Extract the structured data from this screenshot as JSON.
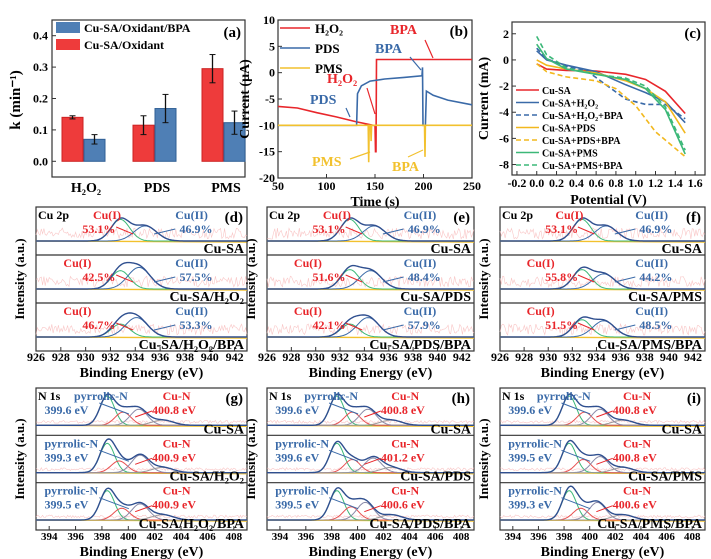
{
  "chart_data": [
    {
      "panel": "a",
      "label": "(a)",
      "type": "bar",
      "categories": [
        "H₂O₂",
        "PDS",
        "PMS"
      ],
      "ylabel": "k (min⁻¹)",
      "xlabel": "",
      "ylim": [
        -0.05,
        0.45
      ],
      "yticks": [
        "0.0",
        "0.1",
        "0.2",
        "0.3",
        "0.4"
      ],
      "legend_position": "top-left",
      "series": [
        {
          "name": "Cu-SA/Oxidant",
          "color": "#ee3b3b",
          "values": [
            0.14,
            0.115,
            0.295
          ],
          "errors": [
            0.005,
            0.03,
            0.045
          ]
        },
        {
          "name": "Cu-SA/Oxidant/BPA",
          "color": "#4f7fb5",
          "values": [
            0.07,
            0.168,
            0.123
          ],
          "errors": [
            0.015,
            0.045,
            0.037
          ]
        }
      ]
    },
    {
      "panel": "b",
      "label": "(b)",
      "type": "line",
      "xlabel": "Time (s)",
      "ylabel": "Current (μA)",
      "xlim": [
        50,
        250
      ],
      "ylim": [
        -20,
        10
      ],
      "xticks": [
        "50",
        "100",
        "150",
        "200",
        "250"
      ],
      "yticks": [
        "-20",
        "-15",
        "-10",
        "-5",
        "0",
        "5",
        "10"
      ],
      "legend_position": "top-left",
      "series": [
        {
          "name": "H₂O₂",
          "color": "#e8262b",
          "points": [
            [
              50,
              -6.4
            ],
            [
              70,
              -6.7
            ],
            [
              90,
              -7.6
            ],
            [
              110,
              -8.4
            ],
            [
              130,
              -9.3
            ],
            [
              148,
              -10
            ],
            [
              150,
              -10
            ],
            [
              150.5,
              -15
            ],
            [
              151,
              -15
            ],
            [
              151.5,
              2.5
            ],
            [
              250,
              2.5
            ]
          ]
        },
        {
          "name": "PDS",
          "color": "#3a6aa8",
          "points": [
            [
              50,
              -10
            ],
            [
              131,
              -10
            ],
            [
              132,
              -4
            ],
            [
              136,
              -2.5
            ],
            [
              145,
              -1.6
            ],
            [
              160,
              -1.2
            ],
            [
              180,
              -0.9
            ],
            [
              198.5,
              -0.6
            ],
            [
              199,
              1
            ],
            [
              199.5,
              -10
            ],
            [
              202,
              -10
            ],
            [
              203,
              -3.5
            ],
            [
              210,
              -4.3
            ],
            [
              225,
              -5.2
            ],
            [
              250,
              -6.1
            ]
          ]
        },
        {
          "name": "PMS",
          "color": "#f2c12e",
          "points": [
            [
              50,
              -10
            ],
            [
              143,
              -10
            ],
            [
              143.5,
              -17
            ],
            [
              144,
              -10
            ],
            [
              145.5,
              -10
            ],
            [
              146,
              -13
            ],
            [
              146.5,
              -10
            ],
            [
              201,
              -10
            ],
            [
              201.5,
              -16
            ],
            [
              202,
              -10
            ],
            [
              250,
              -10
            ]
          ]
        }
      ],
      "annotations": [
        {
          "text": "BPA",
          "color": "#e8262b"
        },
        {
          "text": "BPA",
          "color": "#3a6aa8"
        },
        {
          "text": "H₂O₂",
          "color": "#e8262b"
        },
        {
          "text": "PDS",
          "color": "#3a6aa8"
        },
        {
          "text": "PMS",
          "color": "#f2c12e"
        },
        {
          "text": "BPA",
          "color": "#f2c12e"
        }
      ]
    },
    {
      "panel": "c",
      "label": "(c)",
      "type": "line",
      "xlabel": "Potential (V)",
      "ylabel": "Current (mA)",
      "xlim": [
        -0.25,
        1.7
      ],
      "ylim": [
        -8.8,
        2.9
      ],
      "xticks": [
        "-0.2",
        "0.0",
        "0.2",
        "0.4",
        "0.6",
        "0.8",
        "1.0",
        "1.2",
        "1.4",
        "1.6"
      ],
      "yticks": [
        "-8",
        "-6",
        "-4",
        "-2",
        "0",
        "2"
      ],
      "legend_position": "bottom-left",
      "series": [
        {
          "name": "Cu-SA",
          "color": "#e8262b",
          "dash": false,
          "points": [
            [
              0,
              -0.3
            ],
            [
              0.1,
              -0.7
            ],
            [
              0.3,
              -0.8
            ],
            [
              0.6,
              -0.85
            ],
            [
              0.9,
              -1.1
            ],
            [
              1.1,
              -1.5
            ],
            [
              1.3,
              -2.4
            ],
            [
              1.5,
              -4.1
            ]
          ]
        },
        {
          "name": "Cu-SA+H₂O₂",
          "color": "#3a6aa8",
          "dash": false,
          "points": [
            [
              0,
              0.7
            ],
            [
              0.1,
              0
            ],
            [
              0.3,
              -0.4
            ],
            [
              0.6,
              -0.9
            ],
            [
              0.9,
              -1.9
            ],
            [
              1.1,
              -2.5
            ],
            [
              1.3,
              -3.2
            ],
            [
              1.5,
              -4.8
            ]
          ]
        },
        {
          "name": "Cu-SA+H₂O₂+BPA",
          "color": "#3a6aa8",
          "dash": true,
          "points": [
            [
              0,
              0.9
            ],
            [
              0.1,
              0.1
            ],
            [
              0.3,
              -0.5
            ],
            [
              0.5,
              -0.8
            ],
            [
              0.7,
              -1.9
            ],
            [
              0.9,
              -3
            ],
            [
              1.1,
              -3.4
            ],
            [
              1.3,
              -3.4
            ],
            [
              1.5,
              -4.5
            ]
          ]
        },
        {
          "name": "Cu-SA+PDS",
          "color": "#f2b81e",
          "dash": false,
          "points": [
            [
              0,
              0
            ],
            [
              0.1,
              -0.4
            ],
            [
              0.3,
              -0.7
            ],
            [
              0.6,
              -1.0
            ],
            [
              0.9,
              -1.6
            ],
            [
              1.1,
              -2.2
            ],
            [
              1.3,
              -3.2
            ],
            [
              1.5,
              -5.6
            ]
          ]
        },
        {
          "name": "Cu-SA+PDS+BPA",
          "color": "#f2b81e",
          "dash": true,
          "points": [
            [
              0,
              -0.3
            ],
            [
              0.1,
              -0.9
            ],
            [
              0.3,
              -1.3
            ],
            [
              0.6,
              -1.6
            ],
            [
              0.8,
              -2.2
            ],
            [
              1.0,
              -3.5
            ],
            [
              1.2,
              -5.5
            ],
            [
              1.5,
              -7.4
            ]
          ]
        },
        {
          "name": "Cu-SA+PMS",
          "color": "#3cb878",
          "dash": false,
          "points": [
            [
              0,
              1.2
            ],
            [
              0.1,
              0.1
            ],
            [
              0.3,
              -0.7
            ],
            [
              0.6,
              -1.1
            ],
            [
              0.9,
              -1.5
            ],
            [
              1.1,
              -2.2
            ],
            [
              1.3,
              -3.8
            ],
            [
              1.5,
              -7.2
            ]
          ]
        },
        {
          "name": "Cu-SA+PMS+BPA",
          "color": "#3cb878",
          "dash": true,
          "points": [
            [
              0,
              1.8
            ],
            [
              0.1,
              0.4
            ],
            [
              0.3,
              -0.6
            ],
            [
              0.6,
              -1.1
            ],
            [
              0.9,
              -1.4
            ],
            [
              1.1,
              -2.0
            ],
            [
              1.3,
              -3.6
            ],
            [
              1.5,
              -6.9
            ]
          ]
        }
      ]
    },
    {
      "panel": "d",
      "label": "(d)",
      "type": "line",
      "element": "Cu 2p",
      "xlabel": "Binding Energy (eV)",
      "ylabel": "Intensity (a.u.)",
      "xlim": [
        926,
        943
      ],
      "xticks": [
        "926",
        "928",
        "930",
        "932",
        "934",
        "936",
        "938",
        "940",
        "942"
      ],
      "subpanels": [
        {
          "sample": "Cu-SA",
          "peaks": [
            {
              "label": "Cu(I)",
              "value": "53.1%",
              "center": 932.8,
              "height": 1.0
            },
            {
              "label": "Cu(II)",
              "value": "46.9%",
              "center": 934.8,
              "height": 0.7
            }
          ]
        },
        {
          "sample": "Cu-SA/H₂O₂",
          "peaks": [
            {
              "label": "Cu(I)",
              "value": "42.5%",
              "center": 932.8,
              "height": 0.85
            },
            {
              "label": "Cu(II)",
              "value": "57.5%",
              "center": 934.3,
              "height": 1.0
            }
          ]
        },
        {
          "sample": "Cu-SA/H₂O₂/BPA",
          "peaks": [
            {
              "label": "Cu(I)",
              "value": "46.7%",
              "center": 932.8,
              "height": 0.6
            },
            {
              "label": "Cu(II)",
              "value": "53.3%",
              "center": 934.1,
              "height": 0.9
            }
          ]
        }
      ]
    },
    {
      "panel": "e",
      "label": "(e)",
      "type": "line",
      "element": "Cu 2p",
      "xlabel": "Binding Energy (eV)",
      "ylabel": "Intensity (a.u.)",
      "xlim": [
        926,
        943
      ],
      "xticks": [
        "926",
        "928",
        "930",
        "932",
        "934",
        "936",
        "938",
        "940",
        "942"
      ],
      "subpanels": [
        {
          "sample": "Cu-SA",
          "peaks": [
            {
              "label": "Cu(I)",
              "value": "53.1%",
              "center": 932.8,
              "height": 1.0
            },
            {
              "label": "Cu(II)",
              "value": "46.9%",
              "center": 934.8,
              "height": 0.7
            }
          ]
        },
        {
          "sample": "Cu-SA/PDS",
          "peaks": [
            {
              "label": "Cu(I)",
              "value": "51.6%",
              "center": 932.8,
              "height": 0.9
            },
            {
              "label": "Cu(II)",
              "value": "48.4%",
              "center": 934.5,
              "height": 0.85
            }
          ]
        },
        {
          "sample": "Cu-SA/PDS/BPA",
          "peaks": [
            {
              "label": "Cu(I)",
              "value": "42.1%",
              "center": 932.8,
              "height": 0.6
            },
            {
              "label": "Cu(II)",
              "value": "57.9%",
              "center": 934.3,
              "height": 0.9
            }
          ]
        }
      ]
    },
    {
      "panel": "f",
      "label": "(f)",
      "type": "line",
      "element": "Cu 2p",
      "xlabel": "Binding Energy (eV)",
      "ylabel": "Intensity (a.u.)",
      "xlim": [
        926,
        943
      ],
      "xticks": [
        "926",
        "928",
        "930",
        "932",
        "934",
        "936",
        "938",
        "940",
        "942"
      ],
      "subpanels": [
        {
          "sample": "Cu-SA",
          "peaks": [
            {
              "label": "Cu(I)",
              "value": "53.1%",
              "center": 932.8,
              "height": 1.0
            },
            {
              "label": "Cu(II)",
              "value": "46.9%",
              "center": 934.8,
              "height": 0.7
            }
          ]
        },
        {
          "sample": "Cu-SA/PMS",
          "peaks": [
            {
              "label": "Cu(I)",
              "value": "55.8%",
              "center": 932.8,
              "height": 0.9
            },
            {
              "label": "Cu(II)",
              "value": "44.2%",
              "center": 934.6,
              "height": 0.7
            }
          ]
        },
        {
          "sample": "Cu-SA/PMS/BPA",
          "peaks": [
            {
              "label": "Cu(I)",
              "value": "51.5%",
              "center": 932.8,
              "height": 0.8
            },
            {
              "label": "Cu(II)",
              "value": "48.5%",
              "center": 934.6,
              "height": 0.75
            }
          ]
        }
      ]
    },
    {
      "panel": "g",
      "label": "(g)",
      "type": "line",
      "element": "N 1s",
      "xlabel": "Binding Energy (eV)",
      "ylabel": "Intensity (a.u.)",
      "xlim": [
        393,
        409
      ],
      "xticks": [
        "394",
        "396",
        "398",
        "400",
        "402",
        "404",
        "406",
        "408"
      ],
      "subpanels": [
        {
          "sample": "Cu-SA",
          "peaks": [
            {
              "label": "pyrrolic-N",
              "value": "399.6 eV",
              "center": 399.6,
              "height": 0.45
            },
            {
              "label": "Cu-N",
              "value": "400.8 eV",
              "center": 400.8,
              "height": 0.55
            }
          ]
        },
        {
          "sample": "Cu-SA/H₂O₂",
          "peaks": [
            {
              "label": "pyrrolic-N",
              "value": "399.3 eV",
              "center": 399.3,
              "height": 0.4
            },
            {
              "label": "Cu-N",
              "value": "400.9 eV",
              "center": 400.9,
              "height": 0.6
            }
          ]
        },
        {
          "sample": "Cu-SA/H₂O₂/BPA",
          "peaks": [
            {
              "label": "pyrrolic-N",
              "value": "399.5 eV",
              "center": 399.5,
              "height": 0.4
            },
            {
              "label": "Cu-N",
              "value": "400.9 eV",
              "center": 400.9,
              "height": 0.55
            }
          ]
        }
      ]
    },
    {
      "panel": "h",
      "label": "(h)",
      "type": "line",
      "element": "N 1s",
      "xlabel": "Binding Energy (eV)",
      "ylabel": "Intensity (a.u.)",
      "xlim": [
        393,
        409
      ],
      "xticks": [
        "394",
        "396",
        "398",
        "400",
        "402",
        "404",
        "406",
        "408"
      ],
      "subpanels": [
        {
          "sample": "Cu-SA",
          "peaks": [
            {
              "label": "pyrrolic-N",
              "value": "399.6 eV",
              "center": 399.6,
              "height": 0.45
            },
            {
              "label": "Cu-N",
              "value": "400.8 eV",
              "center": 400.8,
              "height": 0.55
            }
          ]
        },
        {
          "sample": "Cu-SA/PDS",
          "peaks": [
            {
              "label": "pyrrolic-N",
              "value": "399.6 eV",
              "center": 399.6,
              "height": 0.45
            },
            {
              "label": "Cu-N",
              "value": "401.2 eV",
              "center": 401.2,
              "height": 0.5
            }
          ]
        },
        {
          "sample": "Cu-SA/PDS/BPA",
          "peaks": [
            {
              "label": "pyrrolic-N",
              "value": "399.5 eV",
              "center": 399.5,
              "height": 0.45
            },
            {
              "label": "Cu-N",
              "value": "400.6 eV",
              "center": 400.6,
              "height": 0.6
            }
          ]
        }
      ]
    },
    {
      "panel": "i",
      "label": "(i)",
      "type": "line",
      "element": "N 1s",
      "xlabel": "Binding Energy (eV)",
      "ylabel": "Intensity (a.u.)",
      "xlim": [
        393,
        409
      ],
      "xticks": [
        "394",
        "396",
        "398",
        "400",
        "402",
        "404",
        "406",
        "408"
      ],
      "subpanels": [
        {
          "sample": "Cu-SA",
          "peaks": [
            {
              "label": "pyrrolic-N",
              "value": "399.6 eV",
              "center": 399.6,
              "height": 0.45
            },
            {
              "label": "Cu-N",
              "value": "400.8 eV",
              "center": 400.8,
              "height": 0.55
            }
          ]
        },
        {
          "sample": "Cu-SA/PMS",
          "peaks": [
            {
              "label": "pyrrolic-N",
              "value": "399.5 eV",
              "center": 399.5,
              "height": 0.45
            },
            {
              "label": "Cu-N",
              "value": "400.8 eV",
              "center": 400.8,
              "height": 0.55
            }
          ]
        },
        {
          "sample": "Cu-SA/PMS/BPA",
          "peaks": [
            {
              "label": "pyrrolic-N",
              "value": "399.3 eV",
              "center": 399.3,
              "height": 0.4
            },
            {
              "label": "Cu-N",
              "value": "400.6 eV",
              "center": 400.6,
              "height": 0.6
            }
          ]
        }
      ]
    }
  ]
}
